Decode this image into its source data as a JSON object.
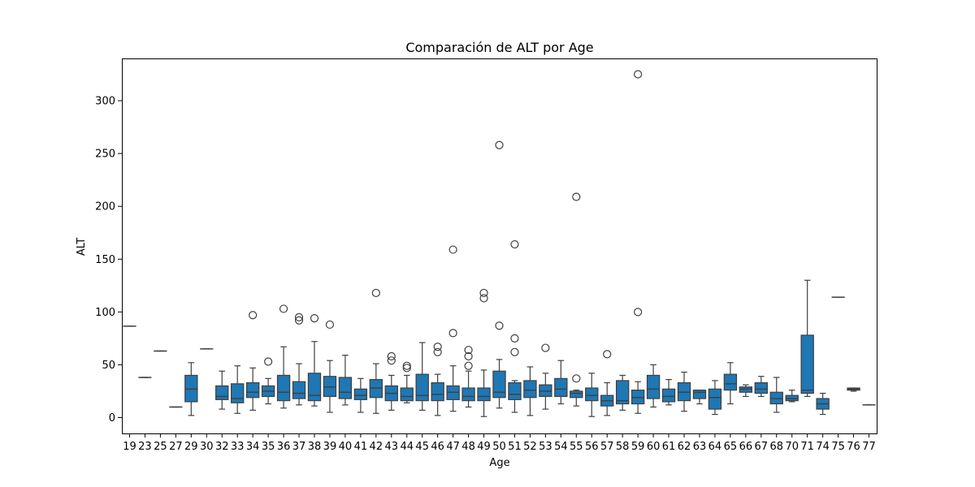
{
  "chart_data": {
    "type": "box",
    "title": "Comparación de ALT por Age",
    "xlabel": "Age",
    "ylabel": "ALT",
    "ylim": [
      -15,
      340
    ],
    "yticks": [
      0,
      50,
      100,
      150,
      200,
      250,
      300
    ],
    "grid": false,
    "legend": "none",
    "colors": {
      "box": "#1f77b4",
      "edge": "#3f3f3f",
      "median": "#3f3f3f",
      "outlier_edge": "#3f3f3f"
    },
    "categories": [
      "19",
      "23",
      "25",
      "27",
      "29",
      "30",
      "32",
      "33",
      "34",
      "35",
      "36",
      "37",
      "38",
      "39",
      "40",
      "41",
      "42",
      "43",
      "44",
      "45",
      "46",
      "47",
      "48",
      "49",
      "50",
      "51",
      "52",
      "53",
      "54",
      "55",
      "56",
      "57",
      "58",
      "59",
      "60",
      "61",
      "62",
      "63",
      "64",
      "65",
      "66",
      "67",
      "68",
      "70",
      "71",
      "74",
      "75",
      "76",
      "77"
    ],
    "boxes": [
      {
        "age": "19",
        "whislo": 86.5,
        "q1": 86.5,
        "med": 86.5,
        "q3": 86.5,
        "whishi": 86.5,
        "fliers": []
      },
      {
        "age": "23",
        "whislo": 38,
        "q1": 38,
        "med": 38,
        "q3": 38,
        "whishi": 38,
        "fliers": []
      },
      {
        "age": "25",
        "whislo": 63,
        "q1": 63,
        "med": 63,
        "q3": 63,
        "whishi": 63,
        "fliers": []
      },
      {
        "age": "27",
        "whislo": 10,
        "q1": 10,
        "med": 10,
        "q3": 10,
        "whishi": 10,
        "fliers": []
      },
      {
        "age": "29",
        "whislo": 2,
        "q1": 15,
        "med": 27,
        "q3": 40,
        "whishi": 52,
        "fliers": []
      },
      {
        "age": "30",
        "whislo": 65,
        "q1": 65,
        "med": 65,
        "q3": 65,
        "whishi": 65,
        "fliers": []
      },
      {
        "age": "32",
        "whislo": 8,
        "q1": 17,
        "med": 20,
        "q3": 30,
        "whishi": 44,
        "fliers": []
      },
      {
        "age": "33",
        "whislo": 4,
        "q1": 14,
        "med": 18,
        "q3": 32,
        "whishi": 49,
        "fliers": []
      },
      {
        "age": "34",
        "whislo": 7,
        "q1": 19,
        "med": 24,
        "q3": 33,
        "whishi": 47,
        "fliers": [
          97
        ]
      },
      {
        "age": "35",
        "whislo": 13,
        "q1": 20,
        "med": 25,
        "q3": 30,
        "whishi": 37,
        "fliers": [
          53
        ]
      },
      {
        "age": "36",
        "whislo": 9,
        "q1": 16,
        "med": 24,
        "q3": 40,
        "whishi": 67,
        "fliers": [
          103
        ]
      },
      {
        "age": "37",
        "whislo": 12,
        "q1": 18,
        "med": 23,
        "q3": 34,
        "whishi": 51,
        "fliers": [
          92,
          95
        ]
      },
      {
        "age": "38",
        "whislo": 11,
        "q1": 16,
        "med": 21,
        "q3": 42,
        "whishi": 72,
        "fliers": [
          94
        ]
      },
      {
        "age": "39",
        "whislo": 5,
        "q1": 20,
        "med": 29,
        "q3": 39,
        "whishi": 54,
        "fliers": [
          88
        ]
      },
      {
        "age": "40",
        "whislo": 12,
        "q1": 18,
        "med": 24,
        "q3": 38,
        "whishi": 59,
        "fliers": []
      },
      {
        "age": "41",
        "whislo": 5,
        "q1": 17,
        "med": 21,
        "q3": 27,
        "whishi": 37,
        "fliers": []
      },
      {
        "age": "42",
        "whislo": 4,
        "q1": 19,
        "med": 28,
        "q3": 36,
        "whishi": 51,
        "fliers": [
          118
        ]
      },
      {
        "age": "43",
        "whislo": 7,
        "q1": 16,
        "med": 23,
        "q3": 30,
        "whishi": 40,
        "fliers": [
          54,
          58
        ]
      },
      {
        "age": "44",
        "whislo": 14,
        "q1": 16,
        "med": 20,
        "q3": 28,
        "whishi": 40,
        "fliers": [
          47,
          49
        ]
      },
      {
        "age": "45",
        "whislo": 7,
        "q1": 16,
        "med": 21,
        "q3": 41,
        "whishi": 71,
        "fliers": []
      },
      {
        "age": "46",
        "whislo": 2,
        "q1": 16,
        "med": 22,
        "q3": 33,
        "whishi": 41,
        "fliers": [
          62,
          67
        ]
      },
      {
        "age": "47",
        "whislo": 6,
        "q1": 17,
        "med": 24,
        "q3": 30,
        "whishi": 49,
        "fliers": [
          80,
          159
        ]
      },
      {
        "age": "48",
        "whislo": 10,
        "q1": 16,
        "med": 20,
        "q3": 28,
        "whishi": 44,
        "fliers": [
          49,
          58,
          64
        ]
      },
      {
        "age": "49",
        "whislo": 1,
        "q1": 16,
        "med": 20,
        "q3": 28,
        "whishi": 45,
        "fliers": [
          113,
          118
        ]
      },
      {
        "age": "50",
        "whislo": 9,
        "q1": 19,
        "med": 24,
        "q3": 44,
        "whishi": 55,
        "fliers": [
          87,
          258
        ]
      },
      {
        "age": "51",
        "whislo": 5,
        "q1": 17,
        "med": 22,
        "q3": 33,
        "whishi": 35,
        "fliers": [
          62,
          75,
          164
        ]
      },
      {
        "age": "52",
        "whislo": 2,
        "q1": 19,
        "med": 26,
        "q3": 35,
        "whishi": 48,
        "fliers": []
      },
      {
        "age": "53",
        "whislo": 8,
        "q1": 20,
        "med": 25,
        "q3": 31,
        "whishi": 42,
        "fliers": [
          66
        ]
      },
      {
        "age": "54",
        "whislo": 13,
        "q1": 20,
        "med": 27,
        "q3": 37,
        "whishi": 54,
        "fliers": []
      },
      {
        "age": "55",
        "whislo": 11,
        "q1": 19,
        "med": 23,
        "q3": 25,
        "whishi": 26,
        "fliers": [
          37,
          209
        ]
      },
      {
        "age": "56",
        "whislo": 1,
        "q1": 16,
        "med": 21,
        "q3": 28,
        "whishi": 42,
        "fliers": []
      },
      {
        "age": "57",
        "whislo": 2,
        "q1": 11,
        "med": 16,
        "q3": 21,
        "whishi": 33,
        "fliers": [
          60
        ]
      },
      {
        "age": "58",
        "whislo": 7,
        "q1": 13,
        "med": 16,
        "q3": 35,
        "whishi": 40,
        "fliers": []
      },
      {
        "age": "59",
        "whislo": 4,
        "q1": 13,
        "med": 19,
        "q3": 26,
        "whishi": 34,
        "fliers": [
          100,
          325
        ]
      },
      {
        "age": "60",
        "whislo": 10,
        "q1": 18,
        "med": 27,
        "q3": 40,
        "whishi": 50,
        "fliers": []
      },
      {
        "age": "61",
        "whislo": 12,
        "q1": 15,
        "med": 20,
        "q3": 27,
        "whishi": 36,
        "fliers": []
      },
      {
        "age": "62",
        "whislo": 6,
        "q1": 16,
        "med": 24,
        "q3": 33,
        "whishi": 43,
        "fliers": []
      },
      {
        "age": "63",
        "whislo": 13,
        "q1": 18,
        "med": 24,
        "q3": 26,
        "whishi": 26,
        "fliers": []
      },
      {
        "age": "64",
        "whislo": 3,
        "q1": 8,
        "med": 19,
        "q3": 27,
        "whishi": 35,
        "fliers": []
      },
      {
        "age": "65",
        "whislo": 13,
        "q1": 26,
        "med": 32,
        "q3": 41,
        "whishi": 52,
        "fliers": []
      },
      {
        "age": "66",
        "whislo": 20,
        "q1": 24,
        "med": 27,
        "q3": 29,
        "whishi": 31,
        "fliers": []
      },
      {
        "age": "67",
        "whislo": 20,
        "q1": 23,
        "med": 27,
        "q3": 33,
        "whishi": 39,
        "fliers": []
      },
      {
        "age": "68",
        "whislo": 5,
        "q1": 13,
        "med": 18,
        "q3": 24,
        "whishi": 38,
        "fliers": []
      },
      {
        "age": "70",
        "whislo": 15,
        "q1": 16,
        "med": 18,
        "q3": 21,
        "whishi": 26,
        "fliers": []
      },
      {
        "age": "71",
        "whislo": 20,
        "q1": 23,
        "med": 26,
        "q3": 78,
        "whishi": 130,
        "fliers": []
      },
      {
        "age": "74",
        "whislo": 3,
        "q1": 8,
        "med": 13,
        "q3": 18,
        "whishi": 23,
        "fliers": []
      },
      {
        "age": "75",
        "whislo": 114,
        "q1": 114,
        "med": 114,
        "q3": 114,
        "whishi": 114,
        "fliers": []
      },
      {
        "age": "76",
        "whislo": 25,
        "q1": 26,
        "med": 27,
        "q3": 28,
        "whishi": 28,
        "fliers": []
      },
      {
        "age": "77",
        "whislo": 12,
        "q1": 12,
        "med": 12,
        "q3": 12,
        "whishi": 12,
        "fliers": []
      }
    ]
  }
}
